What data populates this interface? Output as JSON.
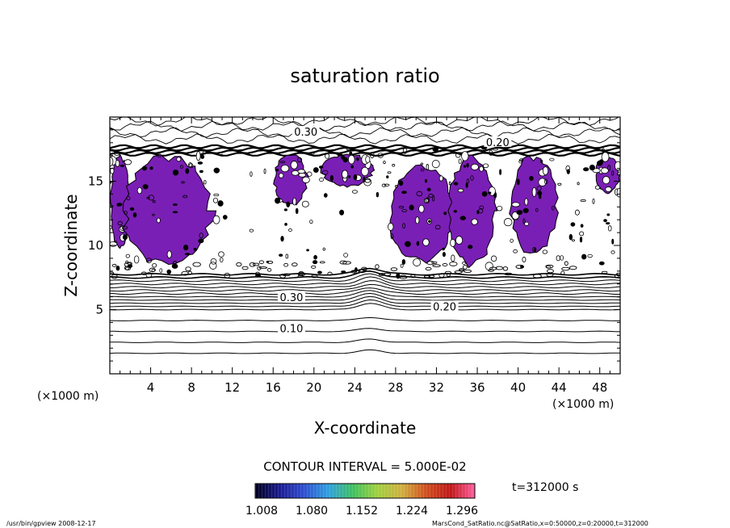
{
  "chart_data": {
    "type": "contour",
    "title": "saturation ratio",
    "xlabel": "X-coordinate",
    "ylabel": "Z-coordinate",
    "x_unit_label_left": "(×1000 m)",
    "x_unit_label_right": "(×1000 m)",
    "xlim": [
      0,
      50
    ],
    "ylim": [
      0,
      20
    ],
    "x_ticks": [
      4,
      8,
      12,
      16,
      20,
      24,
      28,
      32,
      36,
      40,
      44,
      48
    ],
    "y_ticks": [
      5,
      10,
      15
    ],
    "contour_interval_text": "CONTOUR INTERVAL = 5.000E-02",
    "contour_labels": [
      {
        "text": "0.10",
        "x": 17.8,
        "z": 3.5
      },
      {
        "text": "0.20",
        "x": 32.8,
        "z": 5.2
      },
      {
        "text": "0.30",
        "x": 17.8,
        "z": 5.9
      },
      {
        "text": "0.30",
        "x": 19.2,
        "z": 18.8
      },
      {
        "text": "0.20",
        "x": 38.0,
        "z": 18.0
      }
    ],
    "color_scale": {
      "tick_labels": [
        "1.008",
        "1.080",
        "1.152",
        "1.224",
        "1.296"
      ],
      "colors": [
        "#000020",
        "#1c1c90",
        "#3050d0",
        "#30a0e0",
        "#40c060",
        "#a0d040",
        "#d0b040",
        "#d05020",
        "#c01818",
        "#ff60a0"
      ]
    },
    "supersaturated_regions": [
      {
        "x": [
          0,
          2
        ],
        "z": [
          9.5,
          17.2
        ]
      },
      {
        "x": [
          1,
          10.5
        ],
        "z": [
          8.2,
          17.2
        ]
      },
      {
        "x": [
          16,
          19.5
        ],
        "z": [
          13,
          17.2
        ]
      },
      {
        "x": [
          20.5,
          26
        ],
        "z": [
          14.5,
          17.2
        ]
      },
      {
        "x": [
          27,
          34
        ],
        "z": [
          8.5,
          16.5
        ]
      },
      {
        "x": [
          33,
          38
        ],
        "z": [
          8.2,
          17.2
        ]
      },
      {
        "x": [
          39,
          44
        ],
        "z": [
          9,
          17.2
        ]
      },
      {
        "x": [
          47.5,
          50
        ],
        "z": [
          14,
          17
        ]
      }
    ],
    "time_label": "t=312000 s",
    "fill_color": "#7a1fb5"
  },
  "footer": {
    "left": "/usr/bin/gpview  2008-12-17",
    "right": "MarsCond_SatRatio.nc@SatRatio,x=0:50000,z=0:20000,t=312000"
  }
}
